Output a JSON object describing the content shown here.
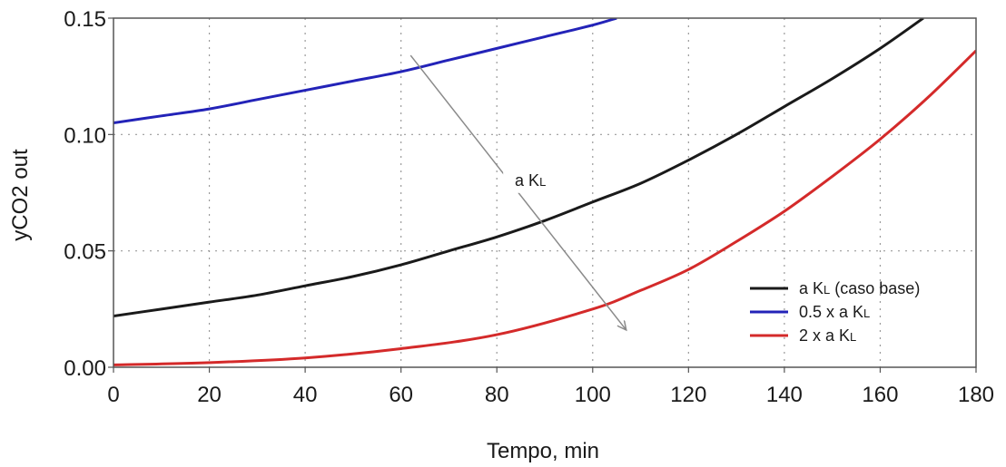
{
  "chart_data": {
    "type": "line",
    "title": "",
    "xlabel": "Tempo, min",
    "ylabel": "yCO2 out",
    "xlim": [
      0,
      180
    ],
    "ylim": [
      0,
      0.15
    ],
    "xticks": [
      0,
      20,
      40,
      60,
      80,
      100,
      120,
      140,
      160,
      180
    ],
    "yticks": [
      0.0,
      0.05,
      0.1,
      0.15
    ],
    "ytick_labels": [
      "0.00",
      "0.05",
      "0.10",
      "0.15"
    ],
    "grid": true,
    "legend_position": "bottom-right",
    "series": [
      {
        "name": "a Kₗ (caso base)",
        "name_main": "a K",
        "name_sub": "L",
        "name_tail": " (caso base)",
        "color": "#1a1a1a",
        "x": [
          0,
          10,
          20,
          30,
          40,
          50,
          60,
          70,
          80,
          90,
          100,
          110,
          120,
          130,
          140,
          150,
          160,
          169
        ],
        "y": [
          0.022,
          0.025,
          0.028,
          0.031,
          0.035,
          0.039,
          0.044,
          0.05,
          0.056,
          0.063,
          0.071,
          0.079,
          0.089,
          0.1,
          0.112,
          0.124,
          0.137,
          0.15
        ]
      },
      {
        "name": "0.5 x a Kₗ",
        "name_main": "0.5 x a K",
        "name_sub": "L",
        "name_tail": "",
        "color": "#2323b8",
        "x": [
          0,
          10,
          20,
          30,
          40,
          50,
          60,
          70,
          80,
          90,
          100,
          105
        ],
        "y": [
          0.105,
          0.108,
          0.111,
          0.115,
          0.119,
          0.123,
          0.127,
          0.132,
          0.137,
          0.142,
          0.147,
          0.15
        ]
      },
      {
        "name": "2 x a Kₗ",
        "name_main": "2 x a K",
        "name_sub": "L",
        "name_tail": "",
        "color": "#d42a2a",
        "x": [
          0,
          20,
          40,
          60,
          80,
          100,
          110,
          120,
          130,
          140,
          150,
          160,
          170,
          180
        ],
        "y": [
          0.001,
          0.002,
          0.004,
          0.008,
          0.014,
          0.025,
          0.033,
          0.042,
          0.054,
          0.067,
          0.082,
          0.098,
          0.116,
          0.136
        ]
      }
    ],
    "annotations": [
      {
        "text": "a Kₗ",
        "text_main": "a K",
        "text_sub": "L",
        "arrow_from": [
          62,
          0.134
        ],
        "arrow_to": [
          107,
          0.016
        ],
        "label_at": [
          87,
          0.078
        ]
      }
    ]
  }
}
